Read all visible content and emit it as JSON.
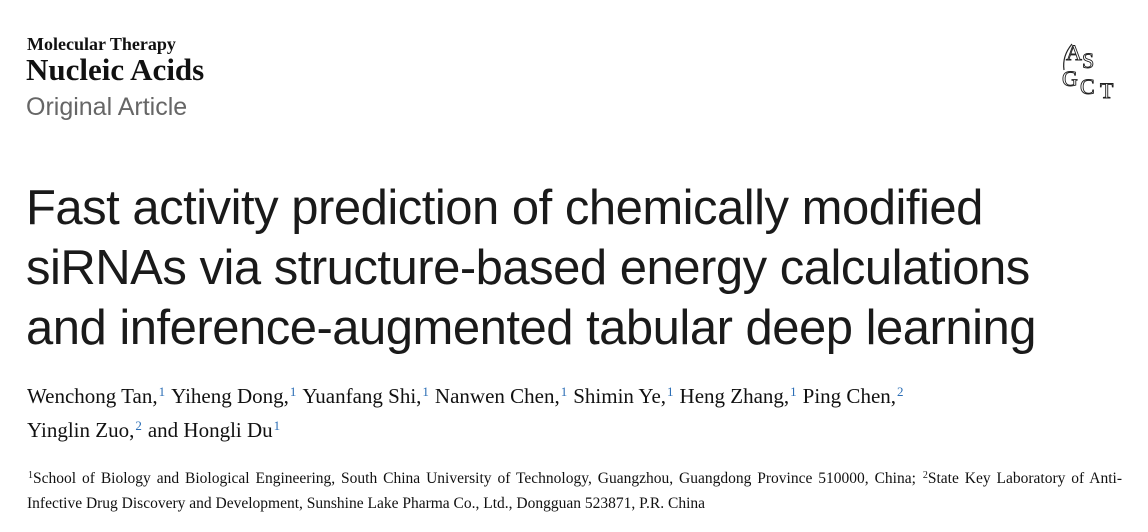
{
  "journal": {
    "line1": "Molecular Therapy",
    "line2": "Nucleic Acids"
  },
  "article_type": "Original Article",
  "logo": [
    "A",
    "S",
    "G",
    "C",
    "T"
  ],
  "title_lines": [
    "Fast activity prediction of chemically modified",
    "siRNAs via structure-based energy calculations",
    "and inference-augmented tabular deep learning"
  ],
  "author_lines": [
    [
      {
        "name": "Wenchong Tan,",
        "sup": "1"
      },
      {
        "name": "Yiheng Dong,",
        "sup": "1"
      },
      {
        "name": "Yuanfang Shi,",
        "sup": "1"
      },
      {
        "name": "Nanwen Chen,",
        "sup": "1"
      },
      {
        "name": "Shimin Ye,",
        "sup": "1"
      },
      {
        "name": "Heng Zhang,",
        "sup": "1"
      },
      {
        "name": "Ping Chen,",
        "sup": "2"
      }
    ],
    [
      {
        "name": "Yinglin Zuo,",
        "sup": "2"
      },
      {
        "name": "and Hongli Du",
        "sup": "1"
      }
    ]
  ],
  "affiliations": [
    {
      "sup": "1",
      "text": "School of Biology and Biological Engineering, South China University of Technology, Guangzhou, Guangdong Province 510000, China;"
    },
    {
      "sup": "2",
      "text": "State Key Laboratory of Anti-Infective Drug Discovery and Development, Sunshine Lake Pharma Co., Ltd., Dongguan 523871, P.R. China"
    }
  ]
}
